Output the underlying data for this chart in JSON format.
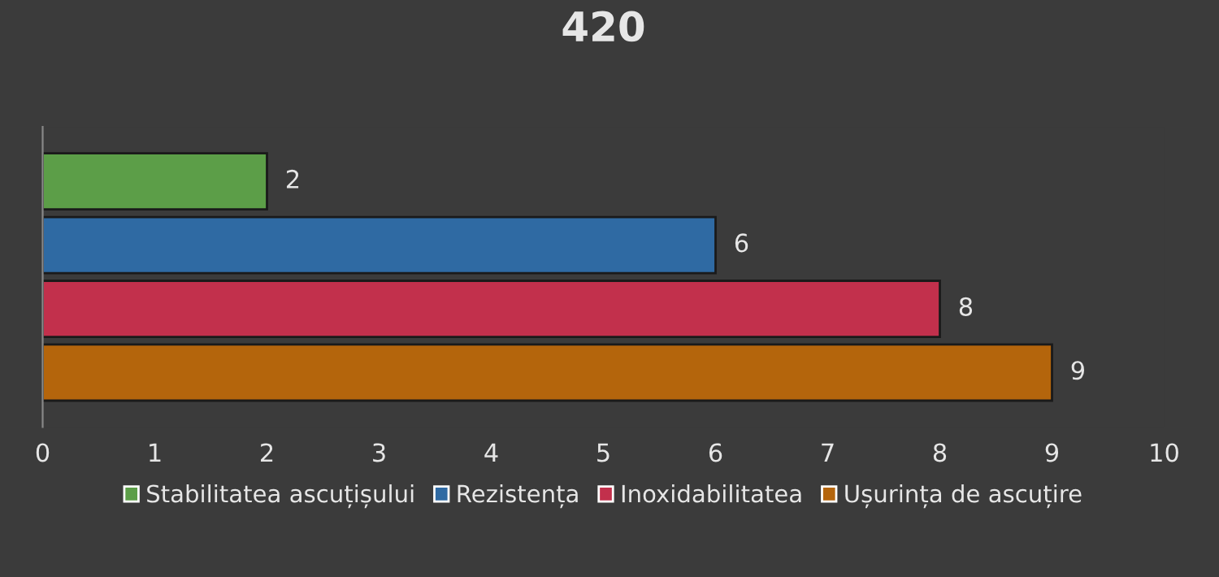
{
  "chart_data": {
    "type": "bar",
    "title": "420",
    "orientation": "horizontal",
    "categories": [
      null
    ],
    "series": [
      {
        "name": "Stabilitatea ascuțișului",
        "color": "#5c9e48",
        "values": [
          2
        ]
      },
      {
        "name": "Rezistența",
        "color": "#2f6aa3",
        "values": [
          6
        ]
      },
      {
        "name": "Inoxidabilitatea",
        "color": "#c2304c",
        "values": [
          8
        ]
      },
      {
        "name": "Ușurința de ascuțire",
        "color": "#b4650c",
        "values": [
          9
        ]
      }
    ],
    "xlim": [
      0,
      10
    ],
    "xticks": [
      0,
      1,
      2,
      3,
      4,
      5,
      6,
      7,
      8,
      9,
      10
    ],
    "data_labels": true,
    "legend": "bottom",
    "grid": false
  }
}
